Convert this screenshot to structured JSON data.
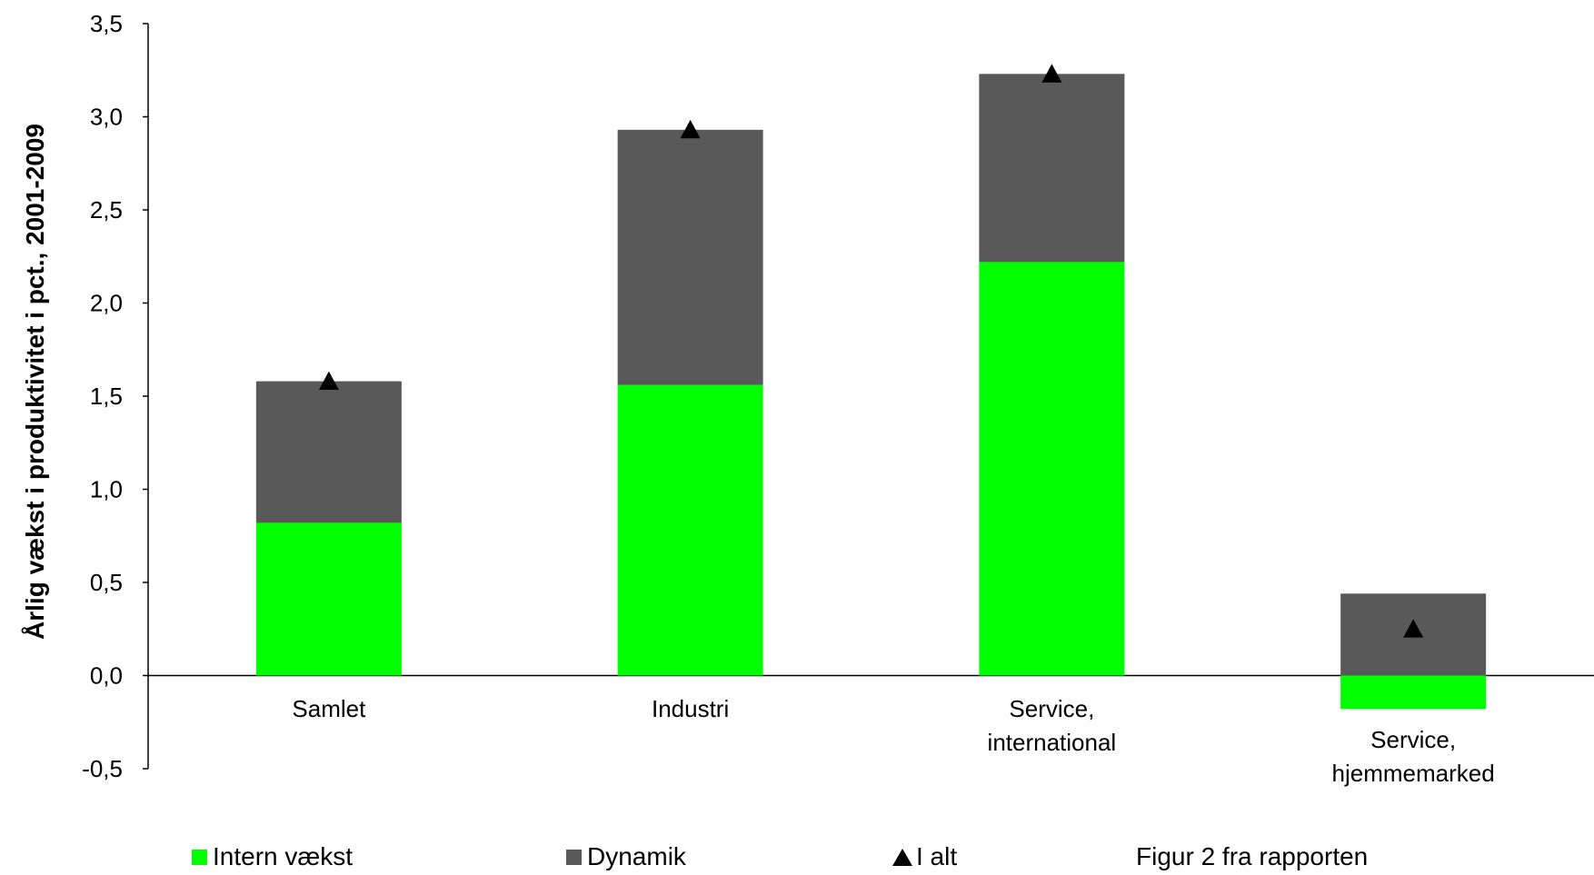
{
  "chart_data": {
    "type": "bar",
    "stacked": true,
    "categories": [
      [
        "Samlet"
      ],
      [
        "Industri"
      ],
      [
        "Service,",
        "international"
      ],
      [
        "Service,",
        "hjemmemarked"
      ]
    ],
    "series": [
      {
        "name": "Intern vækst",
        "color": "#00ff00",
        "values": [
          0.82,
          1.56,
          2.22,
          -0.18
        ]
      },
      {
        "name": "Dynamik",
        "color": "#595959",
        "values": [
          0.76,
          1.37,
          1.01,
          0.44
        ]
      }
    ],
    "total": {
      "name": "I alt",
      "marker": "triangle",
      "color": "#000000",
      "values": [
        1.58,
        2.93,
        3.23,
        0.25
      ]
    },
    "ylabel": "Årlig vækst i produktivitet i pct., 2001-2009",
    "xlabel": "",
    "ylim": [
      -0.5,
      3.5
    ],
    "yticks": [
      "3,5",
      "3,0",
      "2,5",
      "2,0",
      "1,5",
      "1,0",
      "0,5",
      "0,0",
      "-0,5"
    ],
    "grid": false,
    "legend_position": "bottom"
  },
  "legend": {
    "intern_label": "Intern vækst",
    "dynamik_label": "Dynamik",
    "total_label": "I alt"
  },
  "caption": "Figur 2 fra rapporten"
}
